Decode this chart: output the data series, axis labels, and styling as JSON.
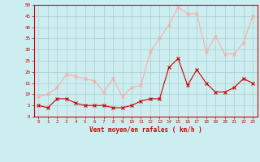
{
  "hours": [
    0,
    1,
    2,
    3,
    4,
    5,
    6,
    7,
    8,
    9,
    10,
    11,
    12,
    13,
    14,
    15,
    16,
    17,
    18,
    19,
    20,
    21,
    22,
    23
  ],
  "wind_avg": [
    5,
    4,
    8,
    8,
    6,
    5,
    5,
    5,
    4,
    4,
    5,
    7,
    8,
    8,
    22,
    26,
    14,
    21,
    15,
    11,
    11,
    13,
    17,
    15
  ],
  "wind_gust": [
    9,
    10,
    13,
    19,
    18,
    17,
    16,
    11,
    17,
    9,
    13,
    14,
    29,
    35,
    41,
    49,
    46,
    46,
    29,
    36,
    28,
    28,
    33,
    45
  ],
  "xlabel": "Vent moyen/en rafales ( km/h )",
  "ylim": [
    0,
    50
  ],
  "yticks": [
    0,
    5,
    10,
    15,
    20,
    25,
    30,
    35,
    40,
    45,
    50
  ],
  "ytick_labels": [
    "0",
    "5",
    "10",
    "15",
    "20",
    "25",
    "30",
    "35",
    "40",
    "45",
    "50"
  ],
  "bg_color": "#cceef0",
  "grid_color": "#aacccc",
  "line_avg_color": "#cc0000",
  "line_gust_color": "#ffaaaa",
  "xlabel_color": "#cc0000",
  "xtick_color": "#cc0000",
  "ytick_color": "#cc0000",
  "spine_color": "#cc0000"
}
